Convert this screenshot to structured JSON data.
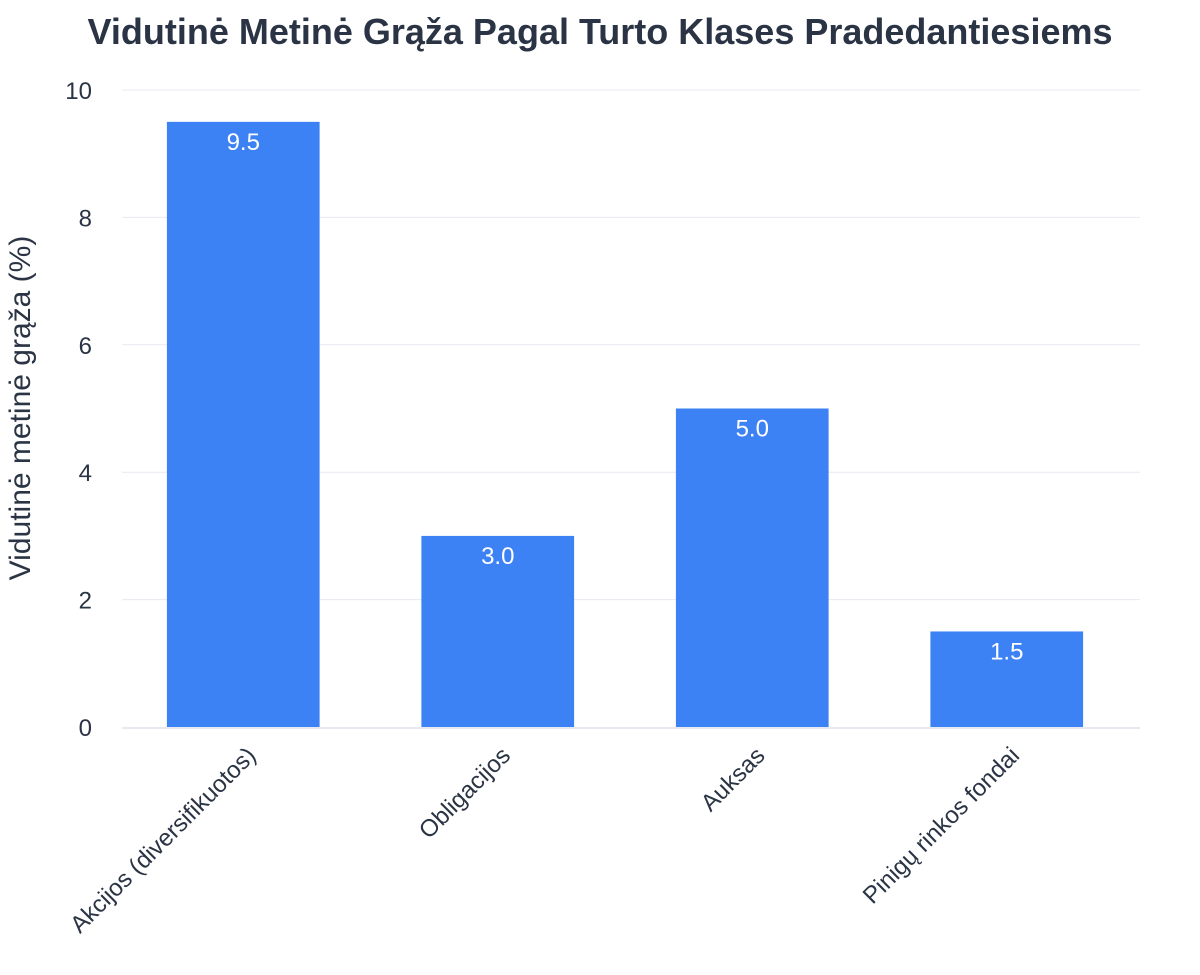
{
  "chart_data": {
    "type": "bar",
    "title": "Vidutinė Metinė Grąža Pagal Turto Klases Pradedantiesiems",
    "xlabel": "",
    "ylabel": "Vidutinė metinė grąža (%)",
    "categories": [
      "Akcijos (diversifikuotos)",
      "Obligacijos",
      "Auksas",
      "Pinigų rinkos fondai"
    ],
    "values": [
      9.5,
      3.0,
      5.0,
      1.5
    ],
    "data_labels": [
      "9.5",
      "3.0",
      "5.0",
      "1.5"
    ],
    "ylim": [
      0,
      10
    ],
    "yticks": [
      0,
      2,
      4,
      6,
      8,
      10
    ],
    "grid": true,
    "legend": "none",
    "bar_color": "#3d82f5"
  }
}
